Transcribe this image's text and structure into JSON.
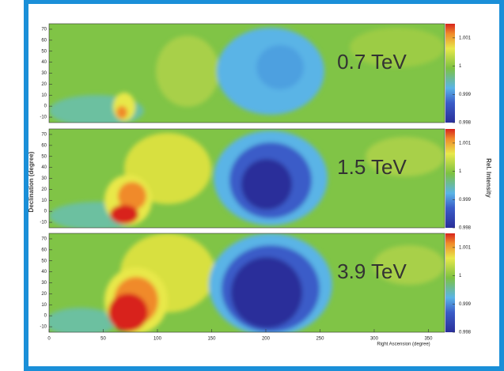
{
  "chart_data": [
    {
      "type": "heatmap",
      "title": "0.7 TeV",
      "xlim": [
        0,
        365
      ],
      "ylim": [
        -15,
        75
      ],
      "yticks": [
        -10,
        0,
        10,
        20,
        30,
        40,
        50,
        60,
        70
      ],
      "clim": [
        0.998,
        1.0015
      ],
      "cticks": [
        0.998,
        0.999,
        1,
        1.001
      ]
    },
    {
      "type": "heatmap",
      "title": "1.5 TeV",
      "ylabel": "Declination (degree)",
      "colorbar_label": "Rel. Intensity",
      "xlim": [
        0,
        365
      ],
      "ylim": [
        -15,
        75
      ],
      "yticks": [
        -10,
        0,
        10,
        20,
        30,
        40,
        50,
        60,
        70
      ],
      "clim": [
        0.998,
        1.0015
      ],
      "cticks": [
        0.998,
        0.999,
        1,
        1.001
      ]
    },
    {
      "type": "heatmap",
      "title": "3.9 TeV",
      "xlabel": "Right Ascension (degree)",
      "xlim": [
        0,
        365
      ],
      "xticks": [
        0,
        50,
        100,
        150,
        200,
        250,
        300,
        350
      ],
      "ylim": [
        -15,
        75
      ],
      "yticks": [
        -10,
        0,
        10,
        20,
        30,
        40,
        50,
        60,
        70
      ],
      "clim": [
        0.998,
        1.0015
      ],
      "cticks": [
        0.998,
        0.999,
        1,
        1.001
      ]
    }
  ]
}
